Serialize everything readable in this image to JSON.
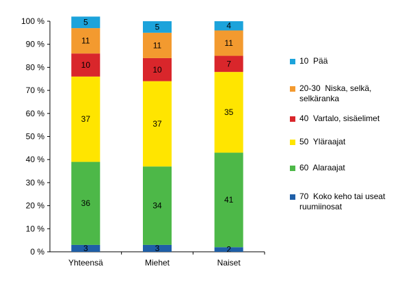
{
  "chart_data": {
    "type": "bar",
    "stacked": true,
    "categories": [
      "Yhteensä",
      "Miehet",
      "Naiset"
    ],
    "ylim": [
      0,
      100
    ],
    "yticks": [
      "0 %",
      "10 %",
      "20 %",
      "30 %",
      "40 %",
      "50 %",
      "60 %",
      "70 %",
      "80 %",
      "90 %",
      "100 %"
    ],
    "series": [
      {
        "name": "70  Koko keho tai useat ruumiinosat",
        "color": "#1f5fa8",
        "values": [
          3,
          3,
          2
        ]
      },
      {
        "name": "60  Alaraajat",
        "color": "#4db848",
        "values": [
          36,
          34,
          41
        ]
      },
      {
        "name": "50  Yläraajat",
        "color": "#ffe500",
        "values": [
          37,
          37,
          35
        ]
      },
      {
        "name": "40  Vartalo, sisäelimet",
        "color": "#d9262b",
        "values": [
          10,
          10,
          7
        ]
      },
      {
        "name": "20-30  Niska, selkä, selkäranka",
        "color": "#f39a2f",
        "values": [
          11,
          11,
          11
        ]
      },
      {
        "name": "10  Pää",
        "color": "#1ca3db",
        "values": [
          5,
          5,
          4
        ]
      }
    ],
    "legend": [
      {
        "label": "10  Pää",
        "color": "#1ca3db"
      },
      {
        "label": "20-30  Niska, selkä, selkäranka",
        "color": "#f39a2f"
      },
      {
        "label": "40  Vartalo, sisäelimet",
        "color": "#d9262b"
      },
      {
        "label": "50  Yläraajat",
        "color": "#ffe500"
      },
      {
        "label": "60  Alaraajat",
        "color": "#4db848"
      },
      {
        "label": "70  Koko keho tai useat ruumiinosat",
        "color": "#1f5fa8"
      }
    ],
    "legend_position": "right",
    "grid": false
  }
}
